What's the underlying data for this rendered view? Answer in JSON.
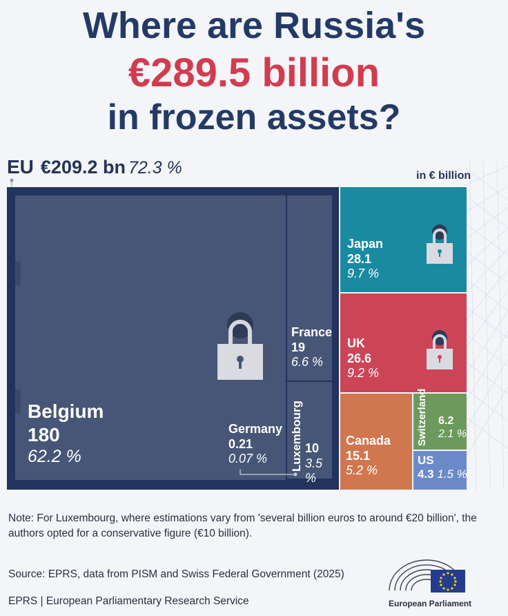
{
  "title": {
    "line1": "Where are Russia's",
    "line2": "€289.5 billion",
    "line3": "in frozen assets?"
  },
  "eu_summary": {
    "label": "EU",
    "amount": "€209.2 bn",
    "share": "72.3 %"
  },
  "unit_label": "in € billion",
  "chart_data": {
    "type": "treemap",
    "total": 289.5,
    "groups": [
      {
        "name": "EU",
        "value": 209.2,
        "share": "72.3 %",
        "items": [
          {
            "name": "Belgium",
            "value": 180,
            "value_label": "180",
            "share": "62.2 %"
          },
          {
            "name": "France",
            "value": 19,
            "value_label": "19",
            "share": "6.6 %"
          },
          {
            "name": "Luxembourg",
            "value": 10,
            "value_label": "10",
            "share": "3.5 %"
          },
          {
            "name": "Germany",
            "value": 0.21,
            "value_label": "0.21",
            "share": "0.07 %"
          }
        ]
      },
      {
        "name": "",
        "items": [
          {
            "name": "Japan",
            "value": 28.1,
            "value_label": "28.1",
            "share": "9.7 %"
          },
          {
            "name": "UK",
            "value": 26.6,
            "value_label": "26.6",
            "share": "9.2 %"
          },
          {
            "name": "Canada",
            "value": 15.1,
            "value_label": "15.1",
            "share": "5.2 %"
          },
          {
            "name": "Switzerland",
            "value": 6.2,
            "value_label": "6.2",
            "share": "2.1 %"
          },
          {
            "name": "US",
            "value": 4.3,
            "value_label": "4.3",
            "share": "1.5 %"
          }
        ]
      }
    ]
  },
  "colors": {
    "eu_border": "#22335d",
    "eu_fill": "#475676",
    "japan": "#1a8aa0",
    "uk": "#cb4557",
    "canada": "#d0774f",
    "switzerland": "#6b9a5c",
    "us": "#6c8ac8",
    "title_red": "#d23c4f",
    "title_blue": "#243a66"
  },
  "note": "Note: For Luxembourg, where estimations vary from 'several billion euros to around €20 billion', the authors opted for a conservative figure (€10 billion).",
  "source": "Source: EPRS, data from PISM and Swiss Federal Government (2025)",
  "footer": "EPRS | European Parliamentary Research Service",
  "logo": {
    "icon": "european-parliament-logo",
    "label": "European Parliament"
  }
}
